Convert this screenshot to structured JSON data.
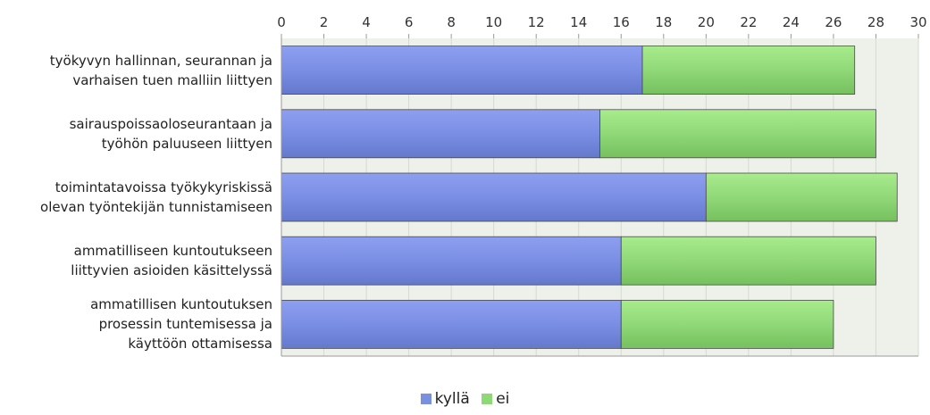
{
  "chart_data": {
    "type": "bar",
    "orientation": "horizontal",
    "stacked": true,
    "categories": [
      [
        "työkyvyn hallinnan, seurannan ja",
        "varhaisen tuen malliin liittyen"
      ],
      [
        "sairauspoissaoloseurantaan ja",
        "työhön paluuseen liittyen"
      ],
      [
        "toimintatavoissa työkykyriskissä",
        "olevan työntekijän tunnistamiseen"
      ],
      [
        "ammatilliseen kuntoutukseen",
        "liittyvien asioiden käsittelyssä"
      ],
      [
        "ammatillisen kuntoutuksen",
        "prosessin tuntemisessa ja",
        "käyttöön ottamisessa"
      ]
    ],
    "series": [
      {
        "name": "kyllä",
        "color": "#7b8fe0",
        "values": [
          17,
          15,
          20,
          16,
          16
        ]
      },
      {
        "name": "ei",
        "color": "#8fd878",
        "values": [
          10,
          13,
          9,
          12,
          10
        ]
      }
    ],
    "xlim": [
      0,
      30
    ],
    "ticks": [
      "0",
      "2",
      "4",
      "6",
      "8",
      "10",
      "12",
      "14",
      "16",
      "18",
      "20",
      "22",
      "24",
      "26",
      "28",
      "30"
    ],
    "grid": true,
    "legend_position": "bottom-center"
  }
}
